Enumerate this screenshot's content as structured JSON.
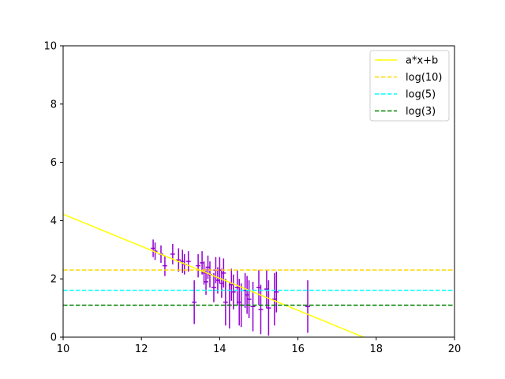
{
  "chart_data": {
    "type": "scatter",
    "title": "",
    "xlabel": "",
    "ylabel": "",
    "xlim": [
      10,
      20
    ],
    "ylim": [
      0,
      10
    ],
    "xticks": [
      "10",
      "12",
      "14",
      "16",
      "18",
      "20"
    ],
    "yticks": [
      "0",
      "2",
      "4",
      "6",
      "8",
      "10"
    ],
    "grid": false,
    "legend_position": "top-right",
    "series": [
      {
        "name": "a*x+b",
        "kind": "line",
        "style": "solid",
        "color": "#ffff00",
        "slope": -0.55,
        "intercept": 9.72
      },
      {
        "name": "log(10)",
        "kind": "hline",
        "style": "dashed",
        "color": "#ffd700",
        "y": 2.302585
      },
      {
        "name": "log(5)",
        "kind": "hline",
        "style": "dashed",
        "color": "#00ffff",
        "y": 1.609438
      },
      {
        "name": "log(3)",
        "kind": "hline",
        "style": "dashed",
        "color": "#008000",
        "y": 1.098612
      }
    ],
    "errorbar_color": "#9400d3",
    "points": [
      {
        "x": 12.3,
        "y": 3.05,
        "xerr": 0.06,
        "yerr": 0.3
      },
      {
        "x": 12.35,
        "y": 2.95,
        "xerr": 0.06,
        "yerr": 0.3
      },
      {
        "x": 12.5,
        "y": 2.85,
        "xerr": 0.06,
        "yerr": 0.3
      },
      {
        "x": 12.6,
        "y": 2.45,
        "xerr": 0.06,
        "yerr": 0.35
      },
      {
        "x": 12.8,
        "y": 2.85,
        "xerr": 0.06,
        "yerr": 0.35
      },
      {
        "x": 12.95,
        "y": 2.65,
        "xerr": 0.06,
        "yerr": 0.4
      },
      {
        "x": 13.05,
        "y": 2.6,
        "xerr": 0.06,
        "yerr": 0.4
      },
      {
        "x": 13.1,
        "y": 2.5,
        "xerr": 0.06,
        "yerr": 0.35
      },
      {
        "x": 13.2,
        "y": 2.6,
        "xerr": 0.06,
        "yerr": 0.35
      },
      {
        "x": 13.35,
        "y": 1.2,
        "xerr": 0.06,
        "yerr": 0.75
      },
      {
        "x": 13.45,
        "y": 2.45,
        "xerr": 0.06,
        "yerr": 0.4
      },
      {
        "x": 13.55,
        "y": 2.55,
        "xerr": 0.06,
        "yerr": 0.4
      },
      {
        "x": 13.6,
        "y": 2.2,
        "xerr": 0.06,
        "yerr": 0.4
      },
      {
        "x": 13.65,
        "y": 1.9,
        "xerr": 0.06,
        "yerr": 0.45
      },
      {
        "x": 13.7,
        "y": 2.4,
        "xerr": 0.06,
        "yerr": 0.4
      },
      {
        "x": 13.75,
        "y": 2.15,
        "xerr": 0.06,
        "yerr": 0.45
      },
      {
        "x": 13.85,
        "y": 1.7,
        "xerr": 0.06,
        "yerr": 0.5
      },
      {
        "x": 13.9,
        "y": 2.3,
        "xerr": 0.06,
        "yerr": 0.45
      },
      {
        "x": 13.95,
        "y": 1.95,
        "xerr": 0.06,
        "yerr": 0.45
      },
      {
        "x": 14.0,
        "y": 2.3,
        "xerr": 0.06,
        "yerr": 0.45
      },
      {
        "x": 14.05,
        "y": 1.85,
        "xerr": 0.06,
        "yerr": 0.5
      },
      {
        "x": 14.1,
        "y": 2.2,
        "xerr": 0.06,
        "yerr": 0.5
      },
      {
        "x": 14.15,
        "y": 1.2,
        "xerr": 0.06,
        "yerr": 0.8
      },
      {
        "x": 14.25,
        "y": 1.1,
        "xerr": 0.06,
        "yerr": 0.8
      },
      {
        "x": 14.3,
        "y": 1.8,
        "xerr": 0.06,
        "yerr": 0.55
      },
      {
        "x": 14.35,
        "y": 1.55,
        "xerr": 0.06,
        "yerr": 0.6
      },
      {
        "x": 14.45,
        "y": 1.7,
        "xerr": 0.06,
        "yerr": 0.6
      },
      {
        "x": 14.5,
        "y": 1.2,
        "xerr": 0.06,
        "yerr": 0.8
      },
      {
        "x": 14.55,
        "y": 1.1,
        "xerr": 0.06,
        "yerr": 0.75
      },
      {
        "x": 14.65,
        "y": 1.6,
        "xerr": 0.06,
        "yerr": 0.6
      },
      {
        "x": 14.7,
        "y": 1.45,
        "xerr": 0.06,
        "yerr": 0.65
      },
      {
        "x": 14.75,
        "y": 1.3,
        "xerr": 0.06,
        "yerr": 0.65
      },
      {
        "x": 14.85,
        "y": 1.05,
        "xerr": 0.06,
        "yerr": 0.85
      },
      {
        "x": 15.0,
        "y": 1.7,
        "xerr": 0.06,
        "yerr": 0.6
      },
      {
        "x": 15.05,
        "y": 0.95,
        "xerr": 0.06,
        "yerr": 0.85
      },
      {
        "x": 15.2,
        "y": 1.65,
        "xerr": 0.06,
        "yerr": 0.65
      },
      {
        "x": 15.25,
        "y": 1.0,
        "xerr": 0.06,
        "yerr": 0.95
      },
      {
        "x": 15.4,
        "y": 1.3,
        "xerr": 0.06,
        "yerr": 0.9
      },
      {
        "x": 15.45,
        "y": 1.55,
        "xerr": 0.06,
        "yerr": 0.7
      },
      {
        "x": 16.25,
        "y": 1.05,
        "xerr": 0.06,
        "yerr": 0.9
      }
    ]
  }
}
